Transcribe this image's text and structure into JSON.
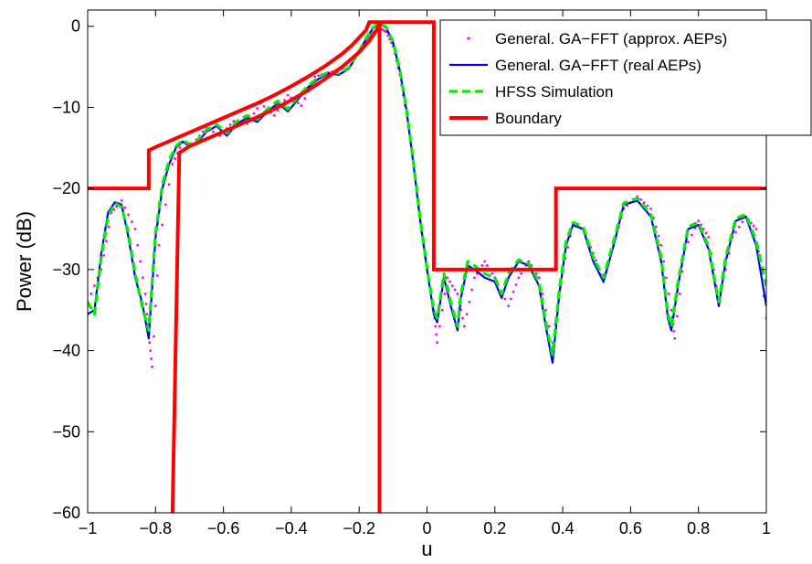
{
  "chart_data": {
    "type": "line",
    "title": "",
    "xlabel": "u",
    "ylabel": "Power (dB)",
    "xlim": [
      -1,
      1
    ],
    "ylim": [
      -60,
      2
    ],
    "xticks": [
      -1,
      -0.8,
      -0.6,
      -0.4,
      -0.2,
      0,
      0.2,
      0.4,
      0.6,
      0.8,
      1
    ],
    "xtick_labels": [
      "−1",
      "−0.8",
      "−0.6",
      "−0.4",
      "−0.2",
      "0",
      "0.2",
      "0.4",
      "0.6",
      "0.8",
      "1"
    ],
    "yticks": [
      0,
      -10,
      -20,
      -30,
      -40,
      -50,
      -60
    ],
    "ytick_labels": [
      "0",
      "−10",
      "−20",
      "−30",
      "−40",
      "−50",
      "−60"
    ],
    "grid": false,
    "legend_position": "top-right",
    "series": [
      {
        "name": "General. GA−FFT (approx. AEPs)",
        "style": "dotted-markers",
        "color": "#ff00ff",
        "x": [
          -1,
          -0.96,
          -0.93,
          -0.9,
          -0.86,
          -0.83,
          -0.82,
          -0.81,
          -0.79,
          -0.75,
          -0.72,
          -0.69,
          -0.65,
          -0.61,
          -0.57,
          -0.53,
          -0.49,
          -0.45,
          -0.41,
          -0.37,
          -0.33,
          -0.29,
          -0.25,
          -0.21,
          -0.18,
          -0.16,
          -0.14,
          -0.12,
          -0.1,
          -0.08,
          -0.06,
          -0.04,
          -0.02,
          0.0,
          0.02,
          0.03,
          0.06,
          0.09,
          0.11,
          0.14,
          0.17,
          0.2,
          0.24,
          0.27,
          0.3,
          0.33,
          0.37,
          0.4,
          0.43,
          0.46,
          0.49,
          0.52,
          0.55,
          0.58,
          0.62,
          0.66,
          0.69,
          0.72,
          0.73,
          0.76,
          0.8,
          0.83,
          0.86,
          0.9,
          0.94,
          0.97,
          1.0
        ],
        "y": [
          -34,
          -30,
          -23,
          -21.5,
          -25,
          -33,
          -38,
          -42,
          -27,
          -17,
          -14.3,
          -14.5,
          -12.5,
          -13.5,
          -11.7,
          -12,
          -9.5,
          -11,
          -8.5,
          -9.8,
          -6.2,
          -5.7,
          -5.2,
          -3.5,
          -2,
          -0.8,
          -0.2,
          -0.7,
          -2.5,
          -6,
          -11,
          -17,
          -24,
          -30,
          -35,
          -39,
          -31,
          -33,
          -37,
          -31,
          -29,
          -31,
          -34.5,
          -31,
          -29,
          -31,
          -39,
          -30,
          -24.5,
          -25,
          -28,
          -31.5,
          -27,
          -22.5,
          -21,
          -22.5,
          -27,
          -35,
          -38.5,
          -27.5,
          -24,
          -26,
          -34,
          -26,
          -23.5,
          -25,
          -36
        ]
      },
      {
        "name": "General. GA−FFT (real AEPs)",
        "style": "solid",
        "color": "#0000ff",
        "x": [
          -1,
          -0.98,
          -0.96,
          -0.94,
          -0.92,
          -0.9,
          -0.88,
          -0.86,
          -0.84,
          -0.82,
          -0.8,
          -0.78,
          -0.76,
          -0.74,
          -0.72,
          -0.7,
          -0.68,
          -0.65,
          -0.62,
          -0.59,
          -0.56,
          -0.53,
          -0.5,
          -0.47,
          -0.44,
          -0.41,
          -0.38,
          -0.35,
          -0.32,
          -0.29,
          -0.26,
          -0.23,
          -0.2,
          -0.18,
          -0.16,
          -0.14,
          -0.12,
          -0.1,
          -0.08,
          -0.06,
          -0.04,
          -0.02,
          0.0,
          0.02,
          0.03,
          0.05,
          0.07,
          0.09,
          0.1,
          0.12,
          0.14,
          0.17,
          0.2,
          0.22,
          0.24,
          0.27,
          0.3,
          0.33,
          0.35,
          0.37,
          0.39,
          0.41,
          0.43,
          0.46,
          0.49,
          0.52,
          0.55,
          0.58,
          0.62,
          0.66,
          0.69,
          0.71,
          0.72,
          0.74,
          0.77,
          0.8,
          0.83,
          0.86,
          0.88,
          0.91,
          0.94,
          0.97,
          1.0
        ],
        "y": [
          -35.5,
          -35,
          -28,
          -23,
          -21.7,
          -22,
          -26,
          -31,
          -34,
          -38.5,
          -26,
          -20,
          -17,
          -15,
          -14.2,
          -14.8,
          -14.5,
          -13,
          -12.3,
          -13.5,
          -12,
          -11.3,
          -11.8,
          -10.5,
          -9.5,
          -10.5,
          -9,
          -7.5,
          -6.5,
          -5.8,
          -6,
          -5.2,
          -3.2,
          -1.6,
          -0.3,
          0.3,
          -0.2,
          -2,
          -5.5,
          -10.5,
          -17,
          -24,
          -30,
          -35.5,
          -36.5,
          -31,
          -34.5,
          -37.5,
          -33.5,
          -29.5,
          -30,
          -31,
          -31.5,
          -33.5,
          -31,
          -29,
          -29.5,
          -32,
          -37,
          -41.5,
          -33,
          -27,
          -24.5,
          -25,
          -29,
          -31.5,
          -27,
          -22,
          -21.5,
          -23.5,
          -29,
          -36,
          -37.5,
          -32,
          -25,
          -24.5,
          -27.5,
          -34.5,
          -29,
          -24,
          -23.5,
          -27,
          -34.5
        ]
      },
      {
        "name": "HFSS Simulation",
        "style": "dashed",
        "color": "#00ee00",
        "x": [
          -1,
          -0.98,
          -0.96,
          -0.94,
          -0.92,
          -0.9,
          -0.88,
          -0.86,
          -0.84,
          -0.82,
          -0.8,
          -0.78,
          -0.76,
          -0.74,
          -0.72,
          -0.7,
          -0.68,
          -0.65,
          -0.62,
          -0.59,
          -0.56,
          -0.53,
          -0.5,
          -0.47,
          -0.44,
          -0.41,
          -0.38,
          -0.35,
          -0.32,
          -0.29,
          -0.26,
          -0.23,
          -0.2,
          -0.18,
          -0.16,
          -0.14,
          -0.12,
          -0.1,
          -0.08,
          -0.06,
          -0.04,
          -0.02,
          0.0,
          0.02,
          0.03,
          0.05,
          0.07,
          0.09,
          0.1,
          0.12,
          0.14,
          0.17,
          0.2,
          0.22,
          0.24,
          0.27,
          0.3,
          0.33,
          0.35,
          0.37,
          0.39,
          0.41,
          0.43,
          0.46,
          0.49,
          0.52,
          0.55,
          0.58,
          0.62,
          0.66,
          0.69,
          0.71,
          0.72,
          0.74,
          0.77,
          0.8,
          0.83,
          0.86,
          0.88,
          0.91,
          0.94,
          0.97,
          1.0
        ],
        "y": [
          -34,
          -35.5,
          -28.5,
          -23.5,
          -21.8,
          -22.3,
          -25.5,
          -30.5,
          -34.5,
          -37.5,
          -25.5,
          -19.5,
          -16.5,
          -14.8,
          -14,
          -14.6,
          -14.2,
          -12.8,
          -12.1,
          -13.2,
          -11.7,
          -11,
          -11.5,
          -10.2,
          -9.2,
          -10.2,
          -8.7,
          -7.3,
          -6.3,
          -5.6,
          -5.8,
          -5.1,
          -3.1,
          -1.5,
          -0.2,
          0.4,
          -0.1,
          -1.9,
          -5.4,
          -10.4,
          -16.8,
          -23.8,
          -29.8,
          -35,
          -36,
          -30.5,
          -34,
          -37,
          -33,
          -29,
          -29.5,
          -30.5,
          -31,
          -33,
          -30.5,
          -28.8,
          -29.3,
          -31.5,
          -36.5,
          -40.5,
          -32.5,
          -26.5,
          -24.2,
          -24.7,
          -28.5,
          -31,
          -26.5,
          -21.8,
          -21.2,
          -23.2,
          -28.5,
          -35.5,
          -37,
          -31.5,
          -24.7,
          -24.2,
          -27.2,
          -34,
          -28.5,
          -23.7,
          -23.2,
          -26.5,
          -32
        ]
      },
      {
        "name": "Boundary",
        "style": "solid-thick",
        "color": "#ff0000",
        "segments": [
          {
            "x": [
              -1,
              -0.82,
              -0.82,
              -0.8,
              -0.75,
              -0.7,
              -0.65,
              -0.6,
              -0.55,
              -0.5,
              -0.45,
              -0.4,
              -0.35,
              -0.3,
              -0.25,
              -0.22,
              -0.2,
              -0.18,
              -0.17,
              0.02,
              0.02,
              0.38,
              0.38,
              1.0
            ],
            "y": [
              -20,
              -20,
              -15.3,
              -14.9,
              -14.0,
              -13.1,
              -12.2,
              -11.3,
              -10.4,
              -9.5,
              -8.5,
              -7.4,
              -6.2,
              -4.9,
              -3.4,
              -2.3,
              -1.4,
              -0.5,
              0.5,
              0.5,
              -30,
              -30,
              -20,
              -20
            ]
          },
          {
            "x": [
              -0.75,
              -0.73,
              -0.7,
              -0.65,
              -0.6,
              -0.55,
              -0.5,
              -0.45,
              -0.4,
              -0.35,
              -0.3,
              -0.25,
              -0.2,
              -0.17,
              -0.15,
              -0.14,
              -0.14
            ],
            "y": [
              -60,
              -15.6,
              -14.8,
              -13.9,
              -13,
              -12.1,
              -11.2,
              -10.2,
              -9.1,
              -7.9,
              -6.5,
              -5,
              -3.2,
              -1.8,
              -0.6,
              0.3,
              -60
            ]
          }
        ]
      }
    ]
  }
}
